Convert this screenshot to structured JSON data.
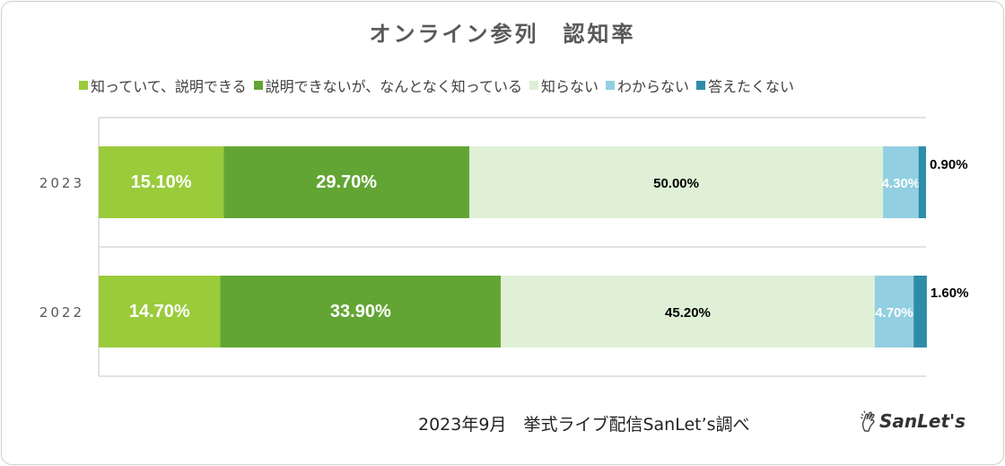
{
  "chart_data": {
    "type": "bar",
    "orientation": "horizontal",
    "stacked": true,
    "title": "オンライン参列　認知率",
    "categories": [
      "2023",
      "2022"
    ],
    "series": [
      {
        "name": "知っていて、説明できる",
        "color": "#9acb3b",
        "values": [
          15.1,
          14.7
        ],
        "labels": [
          "15.10%",
          "14.70%"
        ],
        "label_color": "#ffffff"
      },
      {
        "name": "説明できないが、なんとなく知っている",
        "color": "#63a534",
        "values": [
          29.7,
          33.9
        ],
        "labels": [
          "29.70%",
          "33.90%"
        ],
        "label_color": "#ffffff"
      },
      {
        "name": "知らない",
        "color": "#dff0d6",
        "values": [
          50.0,
          45.2
        ],
        "labels": [
          "50.00%",
          "45.20%"
        ],
        "label_color": "#000000"
      },
      {
        "name": "わからない",
        "color": "#92cfe2",
        "values": [
          4.3,
          4.7
        ],
        "labels": [
          "4.30%",
          "4.70%"
        ],
        "label_color": "#ffffff"
      },
      {
        "name": "答えたくない",
        "color": "#2e8da8",
        "values": [
          0.9,
          1.6
        ],
        "labels": [
          "0.90%",
          "1.60%"
        ],
        "label_color": "#000000"
      }
    ],
    "xlim": [
      0,
      100
    ],
    "legend_position": "top",
    "grid": false
  },
  "footer": {
    "source": "2023年9月　挙式ライブ配信SanLet’s調べ",
    "logo_text": "SanLet's"
  }
}
